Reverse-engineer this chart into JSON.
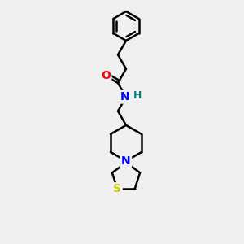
{
  "background_color": "#f0f0f0",
  "bond_color": "#000000",
  "bond_width": 1.8,
  "atom_colors": {
    "O": "#ff0000",
    "N_amide": "#0000ff",
    "N_pipe": "#0000ff",
    "H": "#008080",
    "S": "#cccc00"
  },
  "figsize": [
    3.0,
    3.0
  ],
  "dpi": 100
}
